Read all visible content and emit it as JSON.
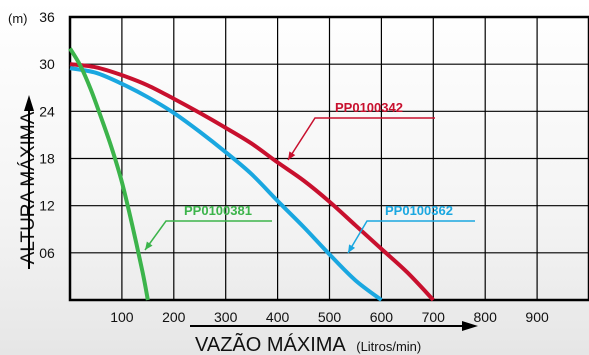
{
  "chart_data": {
    "type": "line",
    "y_unit_label": "(m)",
    "ylabel": "ALTURA MÁXIMA",
    "xlabel": "VAZÃO MÁXIMA",
    "xlabel_unit": "(Litros/min)",
    "xlim": [
      0,
      1000
    ],
    "ylim": [
      0,
      36
    ],
    "x_tick_labels": [
      "100",
      "200",
      "300",
      "400",
      "500",
      "600",
      "700",
      "800",
      "900"
    ],
    "y_tick_labels": [
      "36",
      "30",
      "24",
      "18",
      "12",
      "06"
    ],
    "grid": true,
    "series": [
      {
        "name": "PP0100342",
        "color": "#c8102e",
        "x": [
          0,
          50,
          100,
          150,
          200,
          250,
          300,
          350,
          400,
          450,
          500,
          550,
          600,
          650,
          700
        ],
        "y": [
          30,
          29.6,
          28.6,
          27.3,
          25.6,
          23.8,
          21.9,
          19.9,
          17.5,
          15.2,
          12.5,
          9.5,
          6.5,
          3.5,
          0
        ]
      },
      {
        "name": "PP0100362",
        "color": "#1aa7e0",
        "x": [
          0,
          50,
          100,
          150,
          200,
          250,
          300,
          350,
          400,
          450,
          500,
          550,
          600
        ],
        "y": [
          29.5,
          28.9,
          27.5,
          25.8,
          23.8,
          21.4,
          18.8,
          16,
          12.6,
          9.3,
          5.8,
          2.5,
          0
        ]
      },
      {
        "name": "PP0100381",
        "color": "#3cb44b",
        "x": [
          0,
          20,
          40,
          60,
          80,
          100,
          120,
          140,
          150
        ],
        "y": [
          32,
          29.8,
          26.8,
          23.2,
          19.4,
          15,
          9.5,
          3.5,
          0
        ]
      }
    ]
  }
}
